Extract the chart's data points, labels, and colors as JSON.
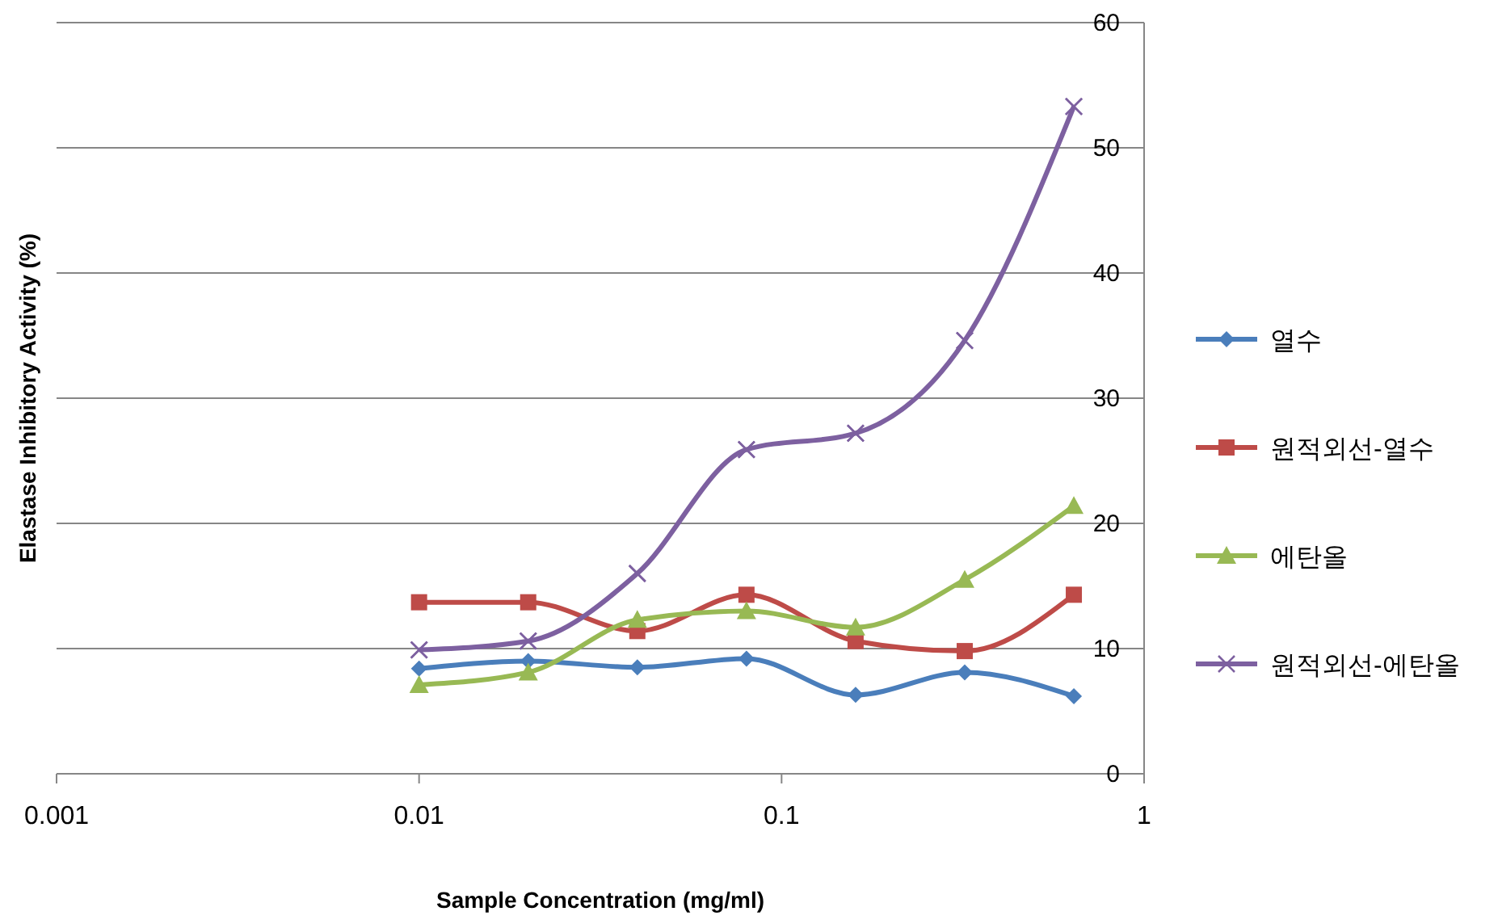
{
  "chart_data": {
    "type": "line",
    "xlabel": "Sample Concentration (mg/ml)",
    "ylabel": "Elastase Inhibitory Activity (%)",
    "log": "x",
    "xlim": [
      0.001,
      1
    ],
    "xticks": [
      0.001,
      0.01,
      0.1,
      1
    ],
    "ylim": [
      0,
      60
    ],
    "yticks": [
      0,
      10,
      20,
      30,
      40,
      50,
      60
    ],
    "grid": "y",
    "legend": "right",
    "x": [
      0.01,
      0.02,
      0.04,
      0.08,
      0.16,
      0.32,
      0.64
    ],
    "series": [
      {
        "name": "열수",
        "color": "#4a7ebb",
        "marker": "diamond",
        "values": [
          8.4,
          9.0,
          8.5,
          9.2,
          6.3,
          8.1,
          6.2
        ]
      },
      {
        "name": "원적외선-열수",
        "color": "#be4b48",
        "marker": "square",
        "values": [
          13.7,
          13.7,
          11.4,
          14.3,
          10.6,
          9.8,
          14.3
        ]
      },
      {
        "name": "에탄올",
        "color": "#98b954",
        "marker": "triangle",
        "values": [
          7.1,
          8.1,
          12.3,
          13.0,
          11.7,
          15.5,
          21.4
        ]
      },
      {
        "name": "원적외선-에탄올",
        "color": "#7d60a0",
        "marker": "cross",
        "values": [
          9.9,
          10.6,
          16.0,
          25.9,
          27.2,
          34.6,
          53.3
        ]
      }
    ]
  }
}
